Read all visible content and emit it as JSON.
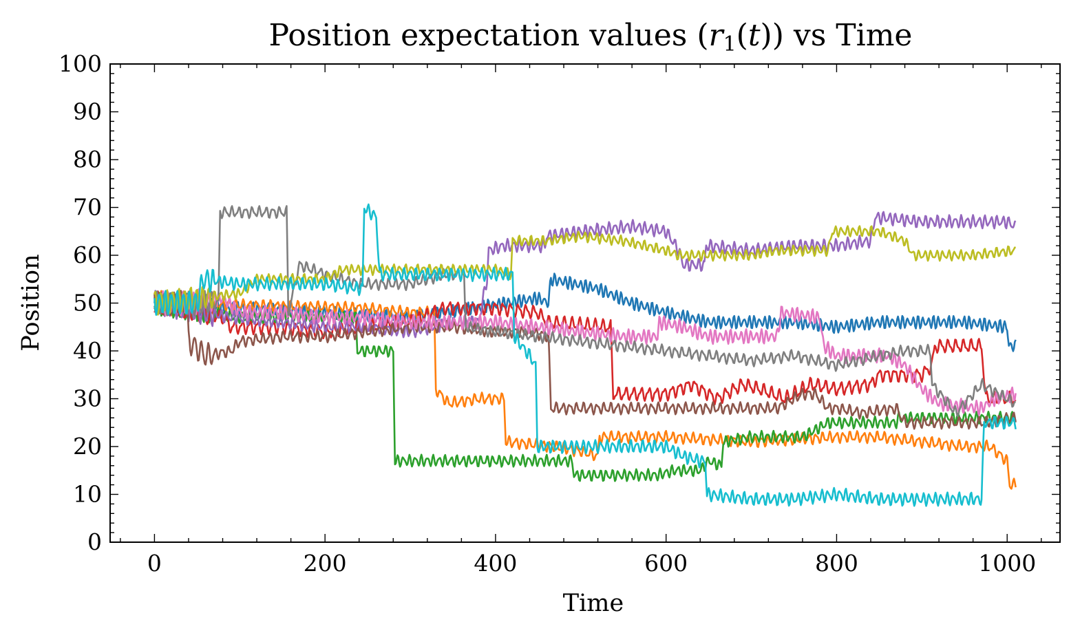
{
  "chart_data": {
    "type": "line",
    "title": "Position expectation values ",
    "title_math": {
      "base": "r",
      "sub": "1",
      "arg": "t"
    },
    "title_suffix": " vs Time",
    "xlabel": "Time",
    "ylabel": "Position",
    "xlim": [
      -52,
      1062
    ],
    "ylim": [
      0,
      100
    ],
    "xticks": [
      0,
      200,
      400,
      600,
      800,
      1000
    ],
    "yticks": [
      0,
      10,
      20,
      30,
      40,
      50,
      60,
      70,
      80,
      90,
      100
    ],
    "grid": false,
    "legend": "none",
    "series": [
      {
        "color": "#1f77b4",
        "noise": 1.0,
        "period": 6,
        "points": [
          [
            0,
            50
          ],
          [
            300,
            47
          ],
          [
            450,
            51
          ],
          [
            462,
            50
          ],
          [
            465,
            55
          ],
          [
            520,
            53
          ],
          [
            560,
            50
          ],
          [
            600,
            48
          ],
          [
            650,
            46
          ],
          [
            700,
            46
          ],
          [
            750,
            46
          ],
          [
            800,
            45
          ],
          [
            850,
            46
          ],
          [
            900,
            46
          ],
          [
            950,
            46
          ],
          [
            1000,
            45
          ],
          [
            1002,
            41
          ],
          [
            1010,
            41
          ]
        ]
      },
      {
        "color": "#ff7f0e",
        "noise": 0.9,
        "period": 8,
        "points": [
          [
            0,
            50
          ],
          [
            240,
            49
          ],
          [
            300,
            48
          ],
          [
            328,
            48
          ],
          [
            330,
            32
          ],
          [
            345,
            29
          ],
          [
            380,
            30
          ],
          [
            410,
            30
          ],
          [
            412,
            21
          ],
          [
            470,
            20
          ],
          [
            500,
            19
          ],
          [
            520,
            18
          ],
          [
            522,
            22
          ],
          [
            600,
            22
          ],
          [
            700,
            21
          ],
          [
            800,
            22
          ],
          [
            850,
            22
          ],
          [
            900,
            21
          ],
          [
            950,
            20
          ],
          [
            980,
            20
          ],
          [
            1000,
            17
          ],
          [
            1003,
            12
          ],
          [
            1010,
            12
          ]
        ]
      },
      {
        "color": "#2ca02c",
        "noise": 0.9,
        "period": 7,
        "points": [
          [
            0,
            50
          ],
          [
            100,
            47
          ],
          [
            200,
            47
          ],
          [
            236,
            47
          ],
          [
            238,
            40
          ],
          [
            280,
            40
          ],
          [
            282,
            17
          ],
          [
            350,
            17
          ],
          [
            400,
            17
          ],
          [
            450,
            17
          ],
          [
            490,
            17
          ],
          [
            492,
            14
          ],
          [
            550,
            14
          ],
          [
            590,
            14
          ],
          [
            610,
            15
          ],
          [
            640,
            15
          ],
          [
            650,
            17
          ],
          [
            665,
            16
          ],
          [
            667,
            21
          ],
          [
            700,
            22
          ],
          [
            760,
            22
          ],
          [
            790,
            25
          ],
          [
            840,
            25
          ],
          [
            870,
            25
          ],
          [
            873,
            26
          ],
          [
            1010,
            26
          ]
        ]
      },
      {
        "color": "#d62728",
        "noise": 1.1,
        "period": 9,
        "points": [
          [
            0,
            50
          ],
          [
            80,
            47
          ],
          [
            90,
            45
          ],
          [
            150,
            45
          ],
          [
            200,
            44
          ],
          [
            300,
            46
          ],
          [
            340,
            49
          ],
          [
            400,
            49
          ],
          [
            450,
            48
          ],
          [
            460,
            46
          ],
          [
            535,
            45
          ],
          [
            538,
            31
          ],
          [
            600,
            31
          ],
          [
            630,
            33
          ],
          [
            660,
            30
          ],
          [
            690,
            33
          ],
          [
            710,
            32
          ],
          [
            740,
            30
          ],
          [
            770,
            33
          ],
          [
            800,
            32
          ],
          [
            840,
            33
          ],
          [
            850,
            35
          ],
          [
            900,
            35
          ],
          [
            912,
            37
          ],
          [
            915,
            41
          ],
          [
            940,
            41
          ],
          [
            970,
            41
          ],
          [
            975,
            30
          ],
          [
            1010,
            30
          ]
        ]
      },
      {
        "color": "#9467bd",
        "noise": 1.0,
        "period": 7,
        "points": [
          [
            0,
            50
          ],
          [
            90,
            47
          ],
          [
            150,
            46
          ],
          [
            200,
            45
          ],
          [
            250,
            45
          ],
          [
            300,
            44
          ],
          [
            350,
            46
          ],
          [
            380,
            46
          ],
          [
            390,
            55
          ],
          [
            392,
            61
          ],
          [
            410,
            62
          ],
          [
            440,
            62
          ],
          [
            458,
            62
          ],
          [
            460,
            64
          ],
          [
            500,
            65
          ],
          [
            560,
            66
          ],
          [
            600,
            65
          ],
          [
            615,
            61
          ],
          [
            620,
            58
          ],
          [
            625,
            58
          ],
          [
            645,
            58
          ],
          [
            647,
            62
          ],
          [
            700,
            61
          ],
          [
            750,
            62
          ],
          [
            800,
            62
          ],
          [
            840,
            63
          ],
          [
            845,
            68
          ],
          [
            900,
            67
          ],
          [
            950,
            67
          ],
          [
            1000,
            67
          ],
          [
            1010,
            66
          ]
        ]
      },
      {
        "color": "#8c564b",
        "noise": 0.9,
        "period": 8,
        "points": [
          [
            0,
            50
          ],
          [
            38,
            50
          ],
          [
            40,
            42
          ],
          [
            60,
            39
          ],
          [
            90,
            40
          ],
          [
            100,
            42
          ],
          [
            150,
            43
          ],
          [
            200,
            43
          ],
          [
            250,
            44
          ],
          [
            300,
            45
          ],
          [
            350,
            45
          ],
          [
            400,
            44
          ],
          [
            440,
            44
          ],
          [
            462,
            43
          ],
          [
            465,
            28
          ],
          [
            500,
            28
          ],
          [
            600,
            28
          ],
          [
            700,
            28
          ],
          [
            730,
            28
          ],
          [
            760,
            31
          ],
          [
            775,
            31
          ],
          [
            790,
            28
          ],
          [
            800,
            28
          ],
          [
            830,
            27
          ],
          [
            870,
            28
          ],
          [
            880,
            25
          ],
          [
            930,
            25
          ],
          [
            970,
            25
          ],
          [
            1010,
            26
          ]
        ]
      },
      {
        "color": "#e377c2",
        "noise": 1.1,
        "period": 6,
        "points": [
          [
            0,
            50
          ],
          [
            40,
            50
          ],
          [
            80,
            51
          ],
          [
            100,
            48
          ],
          [
            150,
            48
          ],
          [
            200,
            47
          ],
          [
            250,
            47
          ],
          [
            300,
            46
          ],
          [
            350,
            46
          ],
          [
            400,
            46
          ],
          [
            450,
            45
          ],
          [
            500,
            44
          ],
          [
            550,
            43
          ],
          [
            590,
            43
          ],
          [
            592,
            46
          ],
          [
            620,
            45
          ],
          [
            650,
            43
          ],
          [
            700,
            43
          ],
          [
            730,
            43
          ],
          [
            735,
            48
          ],
          [
            780,
            47
          ],
          [
            785,
            41
          ],
          [
            800,
            39
          ],
          [
            860,
            39
          ],
          [
            880,
            37
          ],
          [
            900,
            32
          ],
          [
            920,
            29
          ],
          [
            970,
            28
          ],
          [
            985,
            30
          ],
          [
            1010,
            31
          ]
        ]
      },
      {
        "color": "#7f7f7f",
        "noise": 0.9,
        "period": 8,
        "points": [
          [
            0,
            50
          ],
          [
            75,
            50
          ],
          [
            77,
            69
          ],
          [
            150,
            69
          ],
          [
            155,
            69
          ],
          [
            157,
            48
          ],
          [
            170,
            58
          ],
          [
            200,
            56
          ],
          [
            240,
            54
          ],
          [
            300,
            54
          ],
          [
            340,
            56
          ],
          [
            363,
            56
          ],
          [
            365,
            45
          ],
          [
            400,
            44
          ],
          [
            450,
            43
          ],
          [
            500,
            42
          ],
          [
            550,
            41
          ],
          [
            600,
            40
          ],
          [
            650,
            39
          ],
          [
            700,
            38
          ],
          [
            750,
            39
          ],
          [
            800,
            37
          ],
          [
            850,
            39
          ],
          [
            880,
            40
          ],
          [
            910,
            40
          ],
          [
            912,
            33
          ],
          [
            940,
            27
          ],
          [
            970,
            33
          ],
          [
            1010,
            29
          ]
        ]
      },
      {
        "color": "#bcbd22",
        "noise": 0.8,
        "period": 7,
        "points": [
          [
            0,
            50
          ],
          [
            100,
            52
          ],
          [
            120,
            55
          ],
          [
            200,
            55
          ],
          [
            220,
            57
          ],
          [
            300,
            57
          ],
          [
            350,
            57
          ],
          [
            400,
            57
          ],
          [
            418,
            56
          ],
          [
            420,
            63
          ],
          [
            460,
            63
          ],
          [
            500,
            64
          ],
          [
            550,
            63
          ],
          [
            600,
            61
          ],
          [
            615,
            60
          ],
          [
            650,
            60
          ],
          [
            700,
            60
          ],
          [
            730,
            61
          ],
          [
            760,
            61
          ],
          [
            790,
            61
          ],
          [
            795,
            65
          ],
          [
            850,
            65
          ],
          [
            880,
            63
          ],
          [
            890,
            60
          ],
          [
            930,
            60
          ],
          [
            960,
            60
          ],
          [
            1010,
            61
          ]
        ]
      },
      {
        "color": "#17becf",
        "noise": 1.0,
        "period": 7,
        "points": [
          [
            0,
            50
          ],
          [
            50,
            50
          ],
          [
            57,
            55
          ],
          [
            100,
            54
          ],
          [
            200,
            54
          ],
          [
            244,
            53
          ],
          [
            246,
            70
          ],
          [
            260,
            68
          ],
          [
            264,
            56
          ],
          [
            300,
            56
          ],
          [
            350,
            56
          ],
          [
            400,
            56
          ],
          [
            420,
            56
          ],
          [
            422,
            43
          ],
          [
            440,
            39
          ],
          [
            447,
            37
          ],
          [
            449,
            20
          ],
          [
            470,
            20
          ],
          [
            510,
            20
          ],
          [
            550,
            20
          ],
          [
            600,
            20
          ],
          [
            620,
            18
          ],
          [
            640,
            17
          ],
          [
            646,
            17
          ],
          [
            648,
            10
          ],
          [
            700,
            9
          ],
          [
            750,
            9
          ],
          [
            800,
            10
          ],
          [
            850,
            9
          ],
          [
            900,
            9
          ],
          [
            950,
            9
          ],
          [
            970,
            9
          ],
          [
            973,
            25
          ],
          [
            1010,
            25
          ]
        ]
      }
    ]
  }
}
